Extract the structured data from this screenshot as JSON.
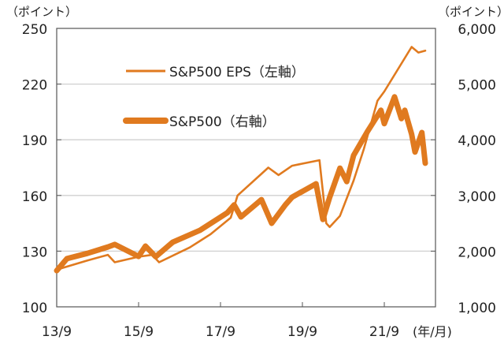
{
  "chart_data": {
    "type": "line",
    "title": "",
    "left_axis": {
      "unit_label": "（ポイント）",
      "range": [
        100,
        250
      ],
      "ticks": [
        100,
        130,
        160,
        190,
        220,
        250
      ]
    },
    "right_axis": {
      "unit_label": "（ポイント）",
      "range": [
        1000,
        6000
      ],
      "ticks": [
        "1,000",
        "2,000",
        "3,000",
        "4,000",
        "5,000",
        "6,000"
      ],
      "tick_values": [
        1000,
        2000,
        3000,
        4000,
        5000,
        6000
      ]
    },
    "x_axis": {
      "unit_label": "(年/月)",
      "ticks": [
        "13/9",
        "15/9",
        "17/9",
        "19/9",
        "21/9"
      ],
      "tick_dates": [
        "2013-09",
        "2015-09",
        "2017-09",
        "2019-09",
        "2021-09"
      ],
      "range": [
        "2013-09",
        "2022-11"
      ]
    },
    "grid": "horizontal",
    "legend_placement": "top-left",
    "color": "#E07A1F",
    "series": [
      {
        "name": "S&P500 EPS（左軸）",
        "axis": "left",
        "style": "thin",
        "points": [
          [
            "2013-09",
            120
          ],
          [
            "2014-06",
            125
          ],
          [
            "2014-12",
            128
          ],
          [
            "2015-02",
            124
          ],
          [
            "2015-09",
            127
          ],
          [
            "2016-01",
            128
          ],
          [
            "2016-03",
            124
          ],
          [
            "2016-12",
            132
          ],
          [
            "2017-06",
            139
          ],
          [
            "2017-12",
            148
          ],
          [
            "2018-02",
            160
          ],
          [
            "2018-11",
            175
          ],
          [
            "2019-02",
            171
          ],
          [
            "2019-06",
            176
          ],
          [
            "2020-02",
            179
          ],
          [
            "2020-04",
            145
          ],
          [
            "2020-05",
            143
          ],
          [
            "2020-08",
            149
          ],
          [
            "2020-12",
            168
          ],
          [
            "2021-03",
            185
          ],
          [
            "2021-07",
            211
          ],
          [
            "2021-09",
            216
          ],
          [
            "2022-05",
            240
          ],
          [
            "2022-07",
            237
          ],
          [
            "2022-09",
            238
          ]
        ]
      },
      {
        "name": "S&P500（右軸）",
        "axis": "right",
        "style": "thick",
        "points": [
          [
            "2013-09",
            1650
          ],
          [
            "2013-12",
            1865
          ],
          [
            "2014-06",
            1960
          ],
          [
            "2014-12",
            2075
          ],
          [
            "2015-02",
            2120
          ],
          [
            "2015-09",
            1905
          ],
          [
            "2015-11",
            2090
          ],
          [
            "2016-02",
            1900
          ],
          [
            "2016-07",
            2160
          ],
          [
            "2017-03",
            2375
          ],
          [
            "2017-11",
            2690
          ],
          [
            "2018-01",
            2830
          ],
          [
            "2018-03",
            2615
          ],
          [
            "2018-09",
            2925
          ],
          [
            "2018-12",
            2500
          ],
          [
            "2019-04",
            2830
          ],
          [
            "2019-06",
            2970
          ],
          [
            "2020-01",
            3210
          ],
          [
            "2020-03",
            2570
          ],
          [
            "2020-05",
            2970
          ],
          [
            "2020-08",
            3490
          ],
          [
            "2020-10",
            3250
          ],
          [
            "2020-12",
            3720
          ],
          [
            "2021-04",
            4140
          ],
          [
            "2021-08",
            4530
          ],
          [
            "2021-09",
            4290
          ],
          [
            "2021-12",
            4770
          ],
          [
            "2022-02",
            4380
          ],
          [
            "2022-03",
            4530
          ],
          [
            "2022-05",
            4100
          ],
          [
            "2022-06",
            3780
          ],
          [
            "2022-08",
            4130
          ],
          [
            "2022-09",
            3580
          ]
        ]
      }
    ]
  }
}
